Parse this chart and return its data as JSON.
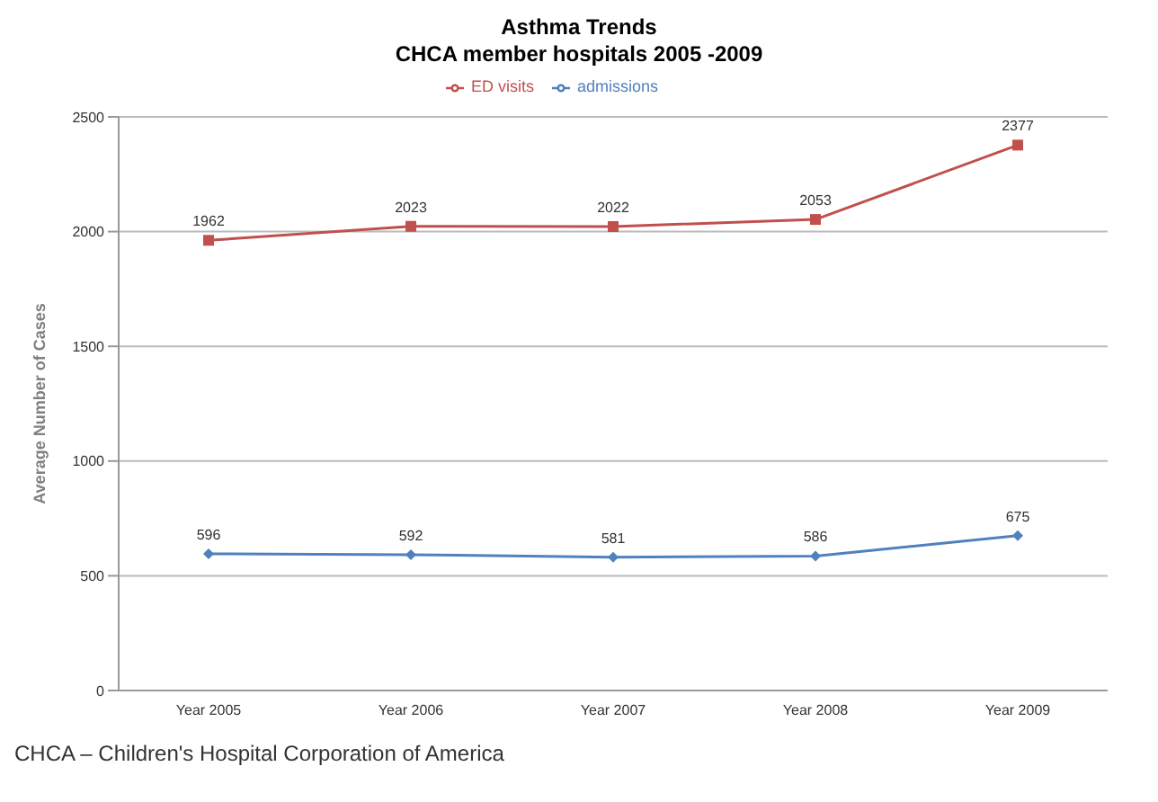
{
  "chart_data": {
    "type": "line",
    "title": "Asthma Trends",
    "subtitle": "CHCA member hospitals 2005 -2009",
    "ylabel": "Average Number of Cases",
    "categories": [
      "Year 2005",
      "Year 2006",
      "Year 2007",
      "Year 2008",
      "Year 2009"
    ],
    "series": [
      {
        "name": "admissions",
        "color": "#4f81bd",
        "marker": "diamond",
        "values": [
          596,
          592,
          581,
          586,
          675
        ]
      },
      {
        "name": "ED visits",
        "color": "#c0504d",
        "marker": "square",
        "values": [
          1962,
          2023,
          2022,
          2053,
          2377
        ]
      }
    ],
    "ylim": [
      0,
      2500
    ],
    "yticks": [
      0,
      500,
      1000,
      1500,
      2000,
      2500
    ],
    "grid": "y",
    "legend": "top",
    "data_labels": true,
    "annotations": [
      "CHCA – Children's Hospital Corporation of America"
    ]
  }
}
